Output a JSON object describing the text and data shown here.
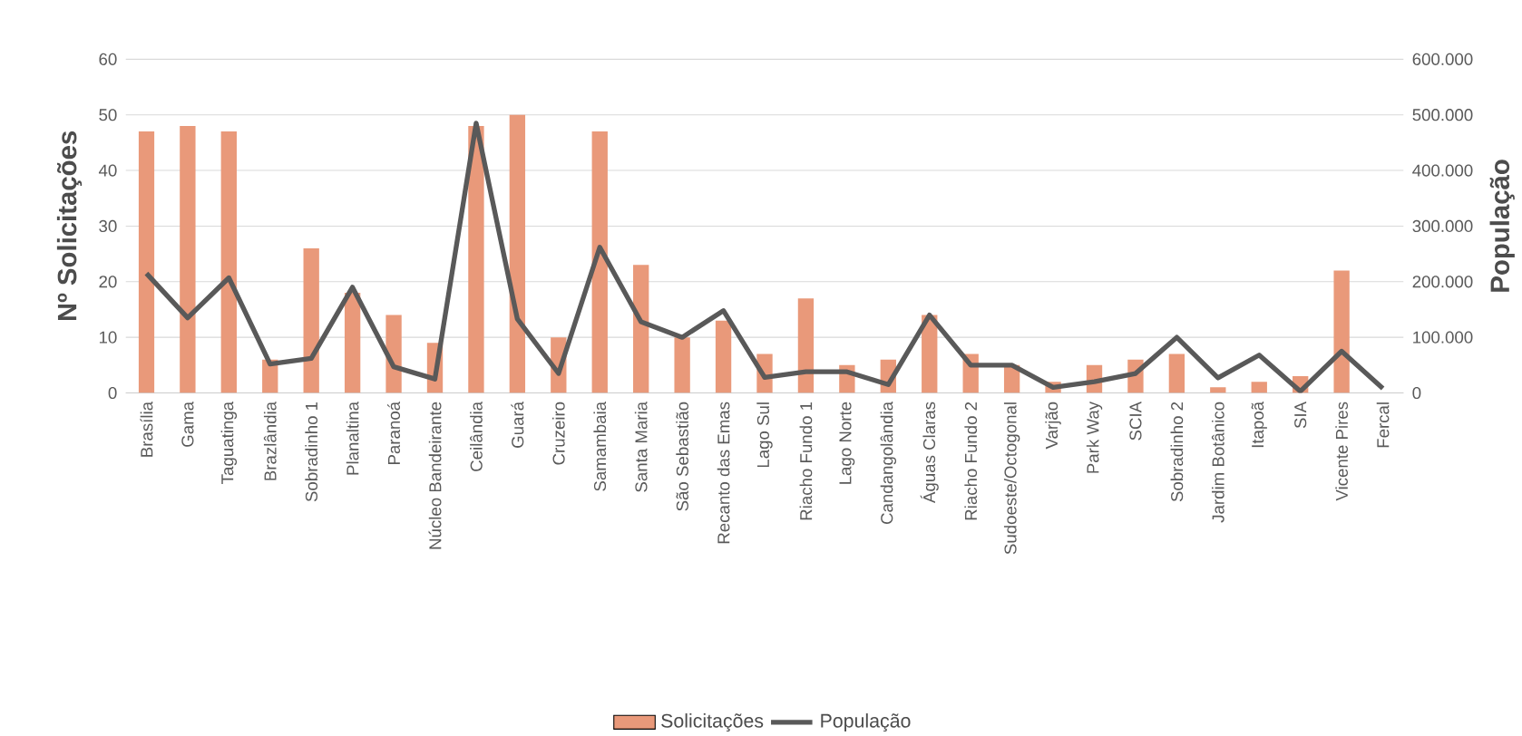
{
  "chart_data": {
    "type": "bar",
    "ylabel": "Nº Solicitações",
    "y2label": "População",
    "categories": [
      "Brasília",
      "Gama",
      "Taguatinga",
      "Brazlândia",
      "Sobradinho 1",
      "Planaltina",
      "Paranoá",
      "Núcleo Bandeirante",
      "Ceilândia",
      "Guará",
      "Cruzeiro",
      "Samambaia",
      "Santa Maria",
      "São Sebastião",
      "Recanto das Emas",
      "Lago Sul",
      "Riacho Fundo 1",
      "Lago Norte",
      "Candangolândia",
      "Águas Claras",
      "Riacho Fundo 2",
      "Sudoeste/Octogonal",
      "Varjão",
      "Park Way",
      "SCIA",
      "Sobradinho 2",
      "Jardim Botânico",
      "Itapoã",
      "SIA",
      "Vicente Pires",
      "Fercal"
    ],
    "series": [
      {
        "name": "Solicitações",
        "color": "#e9997a",
        "values": [
          47,
          48,
          47,
          6,
          26,
          18,
          14,
          9,
          48,
          50,
          10,
          47,
          23,
          10,
          13,
          7,
          17,
          5,
          6,
          14,
          7,
          5,
          2,
          5,
          6,
          7,
          1,
          2,
          3,
          22,
          0
        ]
      },
      {
        "name": "População",
        "type": "line",
        "axis": "y2",
        "color": "#595959",
        "values": [
          215000,
          135000,
          207000,
          52000,
          62000,
          190000,
          47000,
          25000,
          485000,
          133000,
          35000,
          262000,
          128000,
          100000,
          148000,
          28000,
          38000,
          38000,
          15000,
          140000,
          50000,
          50000,
          10000,
          20000,
          35000,
          100000,
          27000,
          68000,
          3000,
          75000,
          8000
        ]
      }
    ],
    "ylim": [
      0,
      60
    ],
    "yticks": [
      0,
      10,
      20,
      30,
      40,
      50,
      60
    ],
    "y2lim": [
      0,
      600000
    ],
    "y2ticks": [
      {
        "value": 0,
        "label": "0"
      },
      {
        "value": 100000,
        "label": "100.000"
      },
      {
        "value": 200000,
        "label": "200.000"
      },
      {
        "value": 300000,
        "label": "300.000"
      },
      {
        "value": 400000,
        "label": "400.000"
      },
      {
        "value": 500000,
        "label": "500.000"
      },
      {
        "value": 600000,
        "label": "600.000"
      }
    ],
    "grid": "y",
    "legend": "bottom",
    "line_style": "solid",
    "marker": "none"
  }
}
